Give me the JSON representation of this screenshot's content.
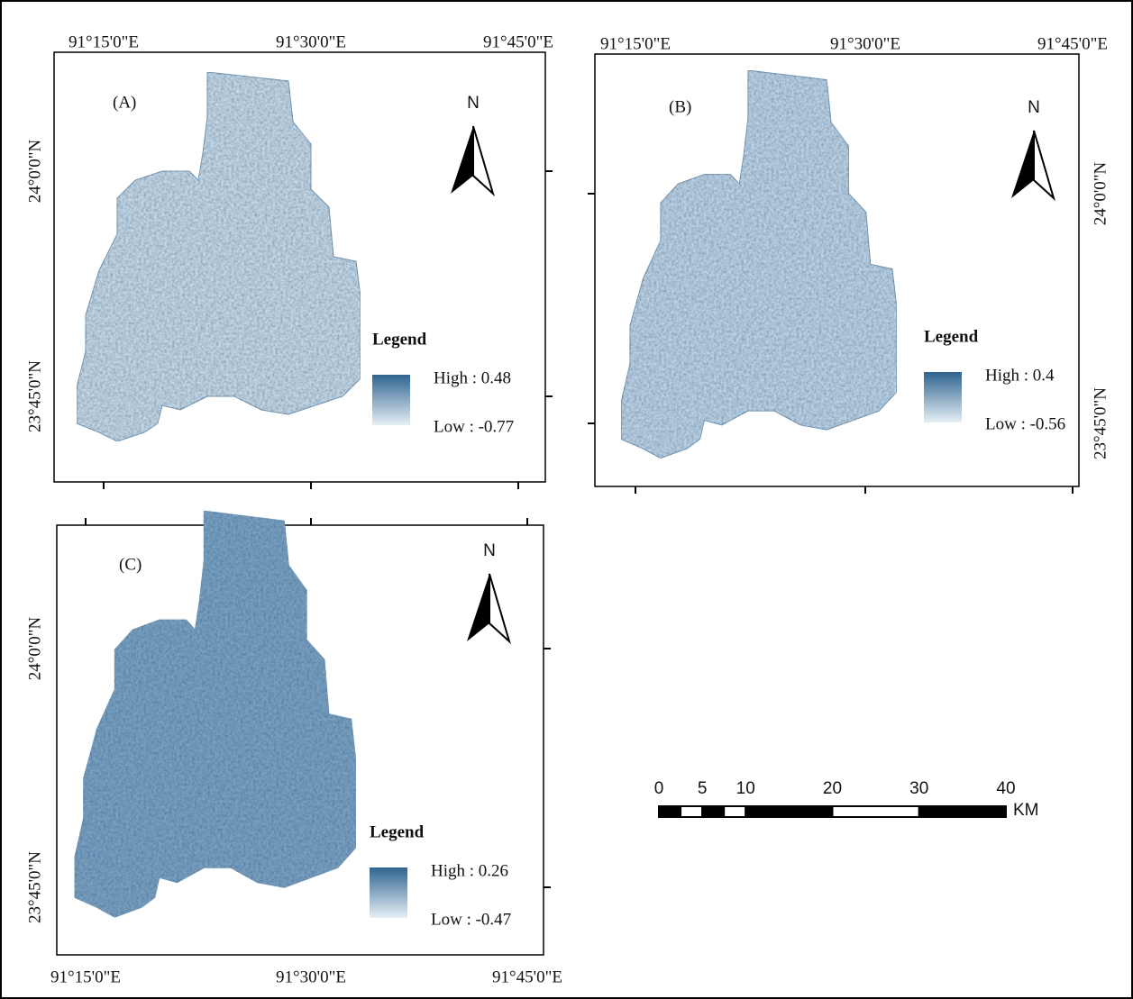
{
  "panels": [
    {
      "label": "(A)",
      "top_labels": [
        "91°15'0\"E",
        "91°30'0\"E",
        "91°45'0\"E"
      ],
      "left_labels": [
        "24°0'0\"N",
        "23°45'0\"N"
      ],
      "north": "N",
      "legend": {
        "title": "Legend",
        "high": "High : 0.48",
        "low": "Low : -0.77"
      }
    },
    {
      "label": "(B)",
      "top_labels": [
        "91°15'0\"E",
        "91°30'0\"E",
        "91°45'0\"E"
      ],
      "right_labels": [
        "24°0'0\"N",
        "23°45'0\"N"
      ],
      "north": "N",
      "legend": {
        "title": "Legend",
        "high": "High : 0.4",
        "low": "Low : -0.56"
      }
    },
    {
      "label": "(C)",
      "bottom_labels": [
        "91°15'0\"E",
        "91°30'0\"E",
        "91°45'0\"E"
      ],
      "left_labels": [
        "24°0'0\"N",
        "23°45'0\"N"
      ],
      "north": "N",
      "legend": {
        "title": "Legend",
        "high": "High : 0.26",
        "low": "Low : -0.47"
      }
    }
  ],
  "scale_bar": {
    "ticks": [
      "0",
      "5",
      "10",
      "20",
      "30",
      "40"
    ],
    "unit": "KM"
  }
}
